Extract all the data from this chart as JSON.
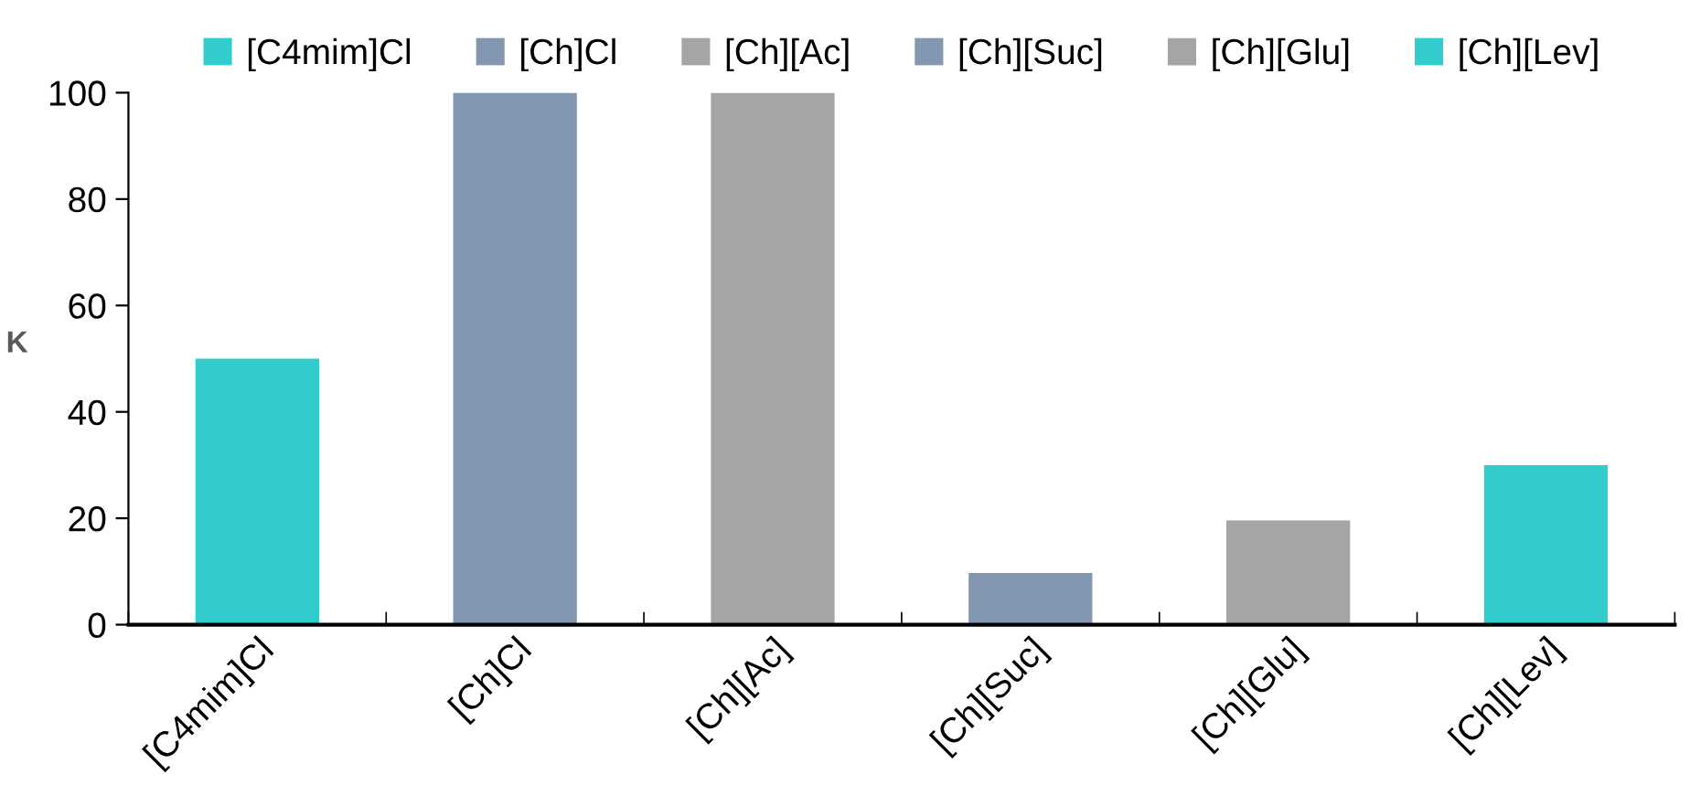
{
  "chart_data": {
    "type": "bar",
    "ylabel": "K",
    "categories": [
      "[C4mim]Cl",
      "[Ch]Cl",
      "[Ch][Ac]",
      "[Ch][Suc]",
      "[Ch][Glu]",
      "[Ch][Lev]"
    ],
    "series": [
      {
        "name": "[C4mim]Cl",
        "color": "#33cccc",
        "values": [
          50,
          null,
          null,
          null,
          null,
          null
        ]
      },
      {
        "name": "[Ch]Cl",
        "color": "#8497b0",
        "values": [
          null,
          100,
          null,
          null,
          null,
          null
        ]
      },
      {
        "name": "[Ch][Ac]",
        "color": "#a5a5a5",
        "values": [
          null,
          null,
          100,
          null,
          null,
          null
        ]
      },
      {
        "name": "[Ch][Suc]",
        "color": "#8497b0",
        "values": [
          null,
          null,
          null,
          9.7,
          null,
          null
        ]
      },
      {
        "name": "[Ch][Glu]",
        "color": "#a5a5a5",
        "values": [
          null,
          null,
          null,
          null,
          19.6,
          null
        ]
      },
      {
        "name": "[Ch][Lev]",
        "color": "#33cccc",
        "values": [
          null,
          null,
          null,
          null,
          null,
          30
        ]
      }
    ],
    "ylim": [
      0,
      100
    ],
    "yticks": [
      0,
      20,
      40,
      60,
      80,
      100
    ],
    "grid": false,
    "legend": "top"
  }
}
